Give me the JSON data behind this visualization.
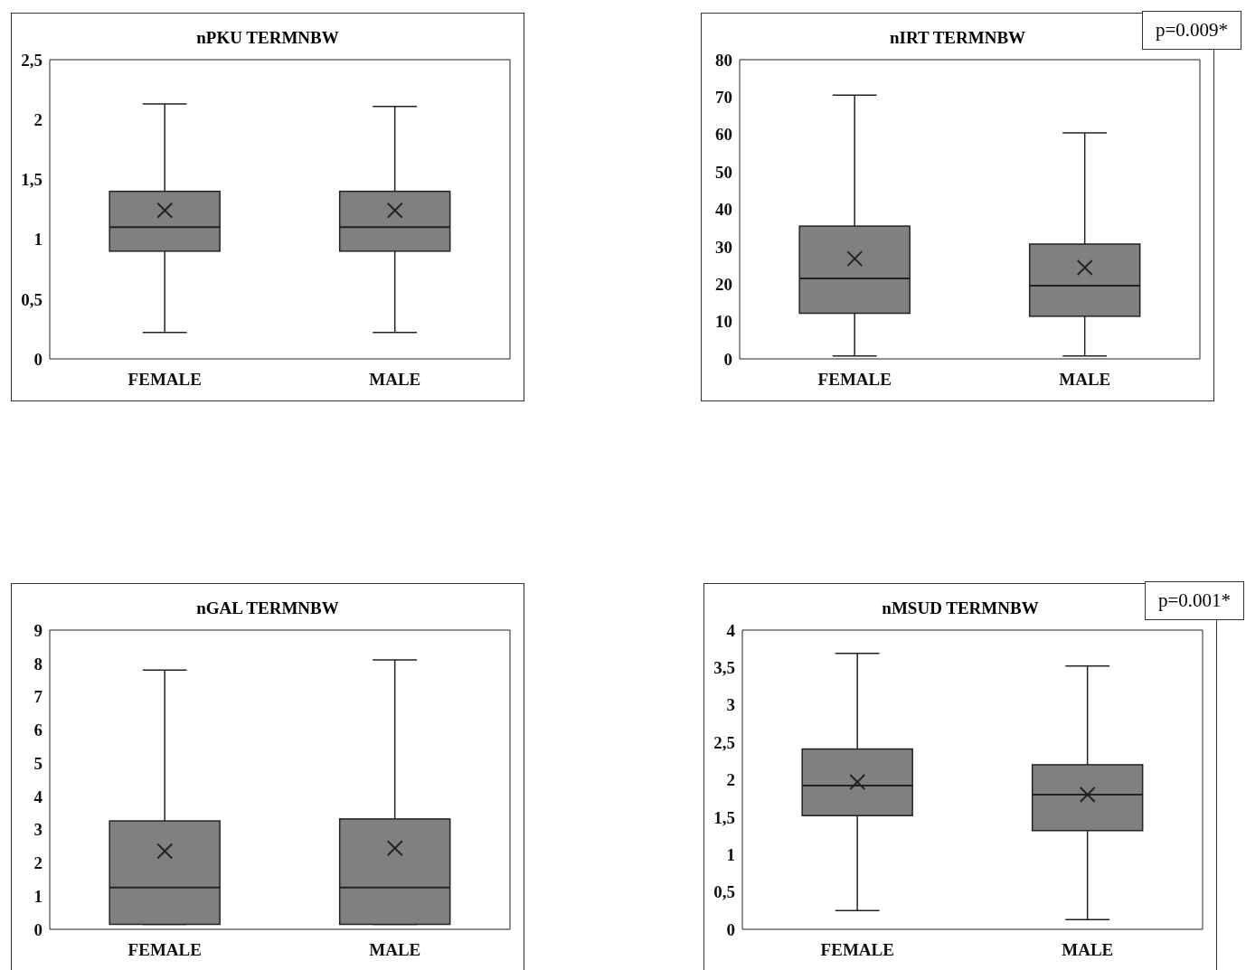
{
  "chart_data": [
    {
      "type": "box",
      "title": "nPKU TERMNBW",
      "categories": [
        "FEMALE",
        "MALE"
      ],
      "color": "#808080",
      "marker": "cross",
      "ylim": [
        0,
        2.5
      ],
      "yticks": [
        0,
        {
          "value": 0.5,
          "label": "0,5"
        },
        1,
        {
          "value": 1.5,
          "label": "1,5"
        },
        2,
        {
          "value": 2.5,
          "label": "2,5"
        }
      ],
      "boxes": [
        {
          "low": 0.22,
          "q1": 0.9,
          "median": 1.1,
          "q3": 1.4,
          "high": 2.13,
          "mean": 1.24
        },
        {
          "low": 0.22,
          "q1": 0.9,
          "median": 1.1,
          "q3": 1.4,
          "high": 2.11,
          "mean": 1.24
        }
      ]
    },
    {
      "type": "box",
      "title": "nIRT TERMNBW",
      "categories": [
        "FEMALE",
        "MALE"
      ],
      "color": "#808080",
      "marker": "cross",
      "ylim": [
        0,
        80
      ],
      "yticks": [
        0,
        10,
        20,
        30,
        40,
        50,
        60,
        70,
        80
      ],
      "annotations": [
        "p=0.009*"
      ],
      "boxes": [
        {
          "low": 0.8,
          "q1": 12.2,
          "median": 21.5,
          "q3": 35.5,
          "high": 70.5,
          "mean": 26.8
        },
        {
          "low": 0.8,
          "q1": 11.4,
          "median": 19.6,
          "q3": 30.7,
          "high": 60.4,
          "mean": 24.4
        }
      ]
    },
    {
      "type": "box",
      "title": "nGAL TERMNBW",
      "categories": [
        "FEMALE",
        "MALE"
      ],
      "color": "#808080",
      "marker": "cross",
      "ylim": [
        0,
        9
      ],
      "yticks": [
        0,
        1,
        2,
        3,
        4,
        5,
        6,
        7,
        8,
        9
      ],
      "boxes": [
        {
          "low": 0.15,
          "q1": 0.15,
          "median": 1.26,
          "q3": 3.26,
          "high": 7.8,
          "mean": 2.35
        },
        {
          "low": 0.15,
          "q1": 0.15,
          "median": 1.26,
          "q3": 3.32,
          "high": 8.1,
          "mean": 2.44
        }
      ]
    },
    {
      "type": "box",
      "title": "nMSUD TERMNBW",
      "categories": [
        "FEMALE",
        "MALE"
      ],
      "color": "#808080",
      "marker": "cross",
      "ylim": [
        0,
        4
      ],
      "yticks": [
        0,
        {
          "value": 0.5,
          "label": "0,5"
        },
        1,
        {
          "value": 1.5,
          "label": "1,5"
        },
        2,
        {
          "value": 2.5,
          "label": "2,5"
        },
        3,
        {
          "value": 3.5,
          "label": "3,5"
        },
        4
      ],
      "annotations": [
        "p=0.001*"
      ],
      "boxes": [
        {
          "low": 0.25,
          "q1": 1.52,
          "median": 1.92,
          "q3": 2.41,
          "high": 3.69,
          "mean": 1.97
        },
        {
          "low": 0.13,
          "q1": 1.32,
          "median": 1.8,
          "q3": 2.2,
          "high": 3.52,
          "mean": 1.8
        }
      ]
    }
  ]
}
